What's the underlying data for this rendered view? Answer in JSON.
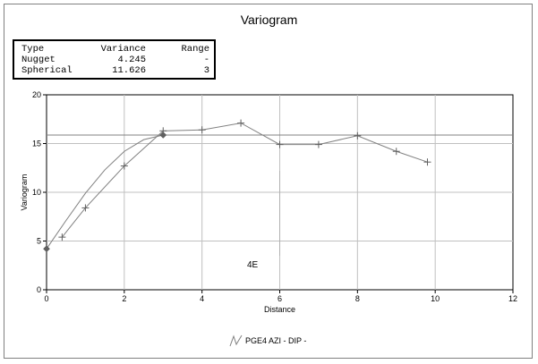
{
  "chart_data": {
    "type": "line",
    "title": "Variogram",
    "xlabel": "Distance",
    "ylabel": "Variogram",
    "xlim": [
      0,
      12
    ],
    "ylim": [
      0,
      20
    ],
    "x_ticks": [
      "0",
      "2",
      "4",
      "6",
      "8",
      "10",
      "12"
    ],
    "y_ticks": [
      "0",
      "5",
      "10",
      "15",
      "20"
    ],
    "grid": true,
    "legend_position": "bottom-center",
    "model_table": {
      "headers": [
        "Type",
        "Variance",
        "Range"
      ],
      "rows": [
        [
          "Nugget",
          "4.245",
          "-"
        ],
        [
          "Spherical",
          "11.626",
          "3"
        ]
      ]
    },
    "sill": 15.871,
    "range_distance": 3,
    "annotation": "4E",
    "series": [
      {
        "name": "PGE4 AZI - DIP -",
        "role": "experimental",
        "x": [
          0.4,
          1.0,
          2.0,
          3.0,
          4.0,
          5.0,
          6.0,
          7.0,
          8.0,
          9.0,
          9.8
        ],
        "y": [
          5.4,
          8.4,
          12.7,
          16.3,
          16.4,
          17.1,
          14.9,
          14.9,
          15.8,
          14.2,
          13.1
        ]
      },
      {
        "role": "model",
        "x": [
          0,
          0.5,
          1.0,
          1.5,
          2.0,
          2.5,
          3.0,
          12.0
        ],
        "y": [
          4.2,
          7.1,
          9.9,
          12.3,
          14.2,
          15.4,
          15.87,
          15.87
        ]
      }
    ],
    "colors": {
      "series": "#808080",
      "grid": "#c0c0c0",
      "marker": "#606060"
    }
  }
}
